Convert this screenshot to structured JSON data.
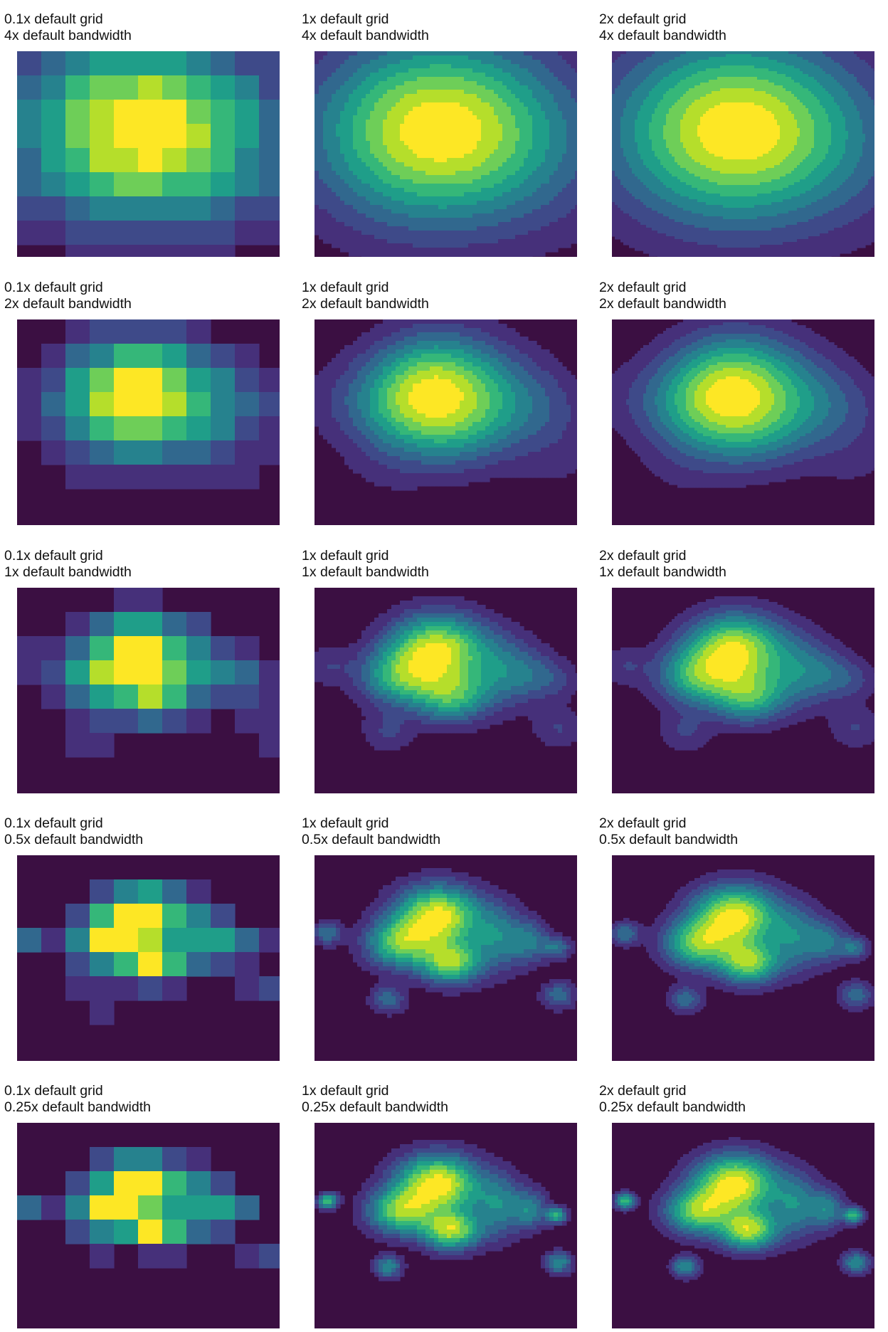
{
  "colors": {
    "background": "#ffffff",
    "plot_background": "#3b0f42",
    "colormap": [
      "#3b0f42",
      "#46307a",
      "#3e4a89",
      "#31688e",
      "#26828e",
      "#1f9e89",
      "#35b779",
      "#6ece58",
      "#b5de2b",
      "#fde725"
    ],
    "contour_line": "#7f6fb0"
  },
  "chart_data": {
    "type": "contour",
    "layout": "5 rows x 3 columns small multiples (kernel density estimate)",
    "rows_bandwidth_scale": [
      4,
      2,
      1,
      0.5,
      0.25
    ],
    "cols_grid_scale": [
      0.1,
      1,
      2
    ],
    "x_axis": "hidden",
    "y_axis": "hidden",
    "grid": false,
    "legend": "none",
    "panels": [
      {
        "row": 0,
        "col": 0,
        "title_line1": "0.1x default grid",
        "title_line2": "4x default bandwidth",
        "grid_scale": 0.1,
        "bandwidth_scale": 4
      },
      {
        "row": 0,
        "col": 1,
        "title_line1": "1x default grid",
        "title_line2": "4x default bandwidth",
        "grid_scale": 1,
        "bandwidth_scale": 4
      },
      {
        "row": 0,
        "col": 2,
        "title_line1": "2x default grid",
        "title_line2": "4x default bandwidth",
        "grid_scale": 2,
        "bandwidth_scale": 4
      },
      {
        "row": 1,
        "col": 0,
        "title_line1": "0.1x default grid",
        "title_line2": "2x default bandwidth",
        "grid_scale": 0.1,
        "bandwidth_scale": 2
      },
      {
        "row": 1,
        "col": 1,
        "title_line1": "1x default grid",
        "title_line2": "2x default bandwidth",
        "grid_scale": 1,
        "bandwidth_scale": 2
      },
      {
        "row": 1,
        "col": 2,
        "title_line1": "2x default grid",
        "title_line2": "2x default bandwidth",
        "grid_scale": 2,
        "bandwidth_scale": 2
      },
      {
        "row": 2,
        "col": 0,
        "title_line1": "0.1x default grid",
        "title_line2": "1x default bandwidth",
        "grid_scale": 0.1,
        "bandwidth_scale": 1
      },
      {
        "row": 2,
        "col": 1,
        "title_line1": "1x default grid",
        "title_line2": "1x default bandwidth",
        "grid_scale": 1,
        "bandwidth_scale": 1
      },
      {
        "row": 2,
        "col": 2,
        "title_line1": "2x default grid",
        "title_line2": "1x default bandwidth",
        "grid_scale": 2,
        "bandwidth_scale": 1
      },
      {
        "row": 3,
        "col": 0,
        "title_line1": "0.1x default grid",
        "title_line2": "0.5x default bandwidth",
        "grid_scale": 0.1,
        "bandwidth_scale": 0.5
      },
      {
        "row": 3,
        "col": 1,
        "title_line1": "1x default grid",
        "title_line2": "0.5x default bandwidth",
        "grid_scale": 1,
        "bandwidth_scale": 0.5
      },
      {
        "row": 3,
        "col": 2,
        "title_line1": "2x default grid",
        "title_line2": "0.5x default bandwidth",
        "grid_scale": 2,
        "bandwidth_scale": 0.5
      },
      {
        "row": 4,
        "col": 0,
        "title_line1": "0.1x default grid",
        "title_line2": "0.25x default bandwidth",
        "grid_scale": 0.1,
        "bandwidth_scale": 0.25
      },
      {
        "row": 4,
        "col": 1,
        "title_line1": "1x default grid",
        "title_line2": "0.25x default bandwidth",
        "grid_scale": 1,
        "bandwidth_scale": 0.25
      },
      {
        "row": 4,
        "col": 2,
        "title_line1": "2x default grid",
        "title_line2": "0.25x default bandwidth",
        "grid_scale": 2,
        "bandwidth_scale": 0.25
      }
    ]
  }
}
